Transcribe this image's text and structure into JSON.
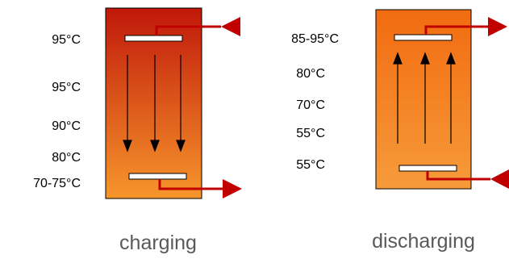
{
  "charging": {
    "temperatures": [
      "95°C",
      "95°C",
      "90°C",
      "80°C",
      "70-75°C"
    ],
    "caption": "charging",
    "flow_direction": "down"
  },
  "discharging": {
    "temperatures": [
      "85-95°C",
      "80°C",
      "70°C",
      "55°C",
      "55°C"
    ],
    "caption": "discharging",
    "flow_direction": "up"
  },
  "colors": {
    "pipe": "#c00000",
    "tank_charging_top": "#c0180a",
    "tank_charging_bottom": "#f7962c",
    "tank_discharging_top": "#f26b10",
    "tank_discharging_bottom": "#f69b3a",
    "caption_text": "#595959"
  }
}
